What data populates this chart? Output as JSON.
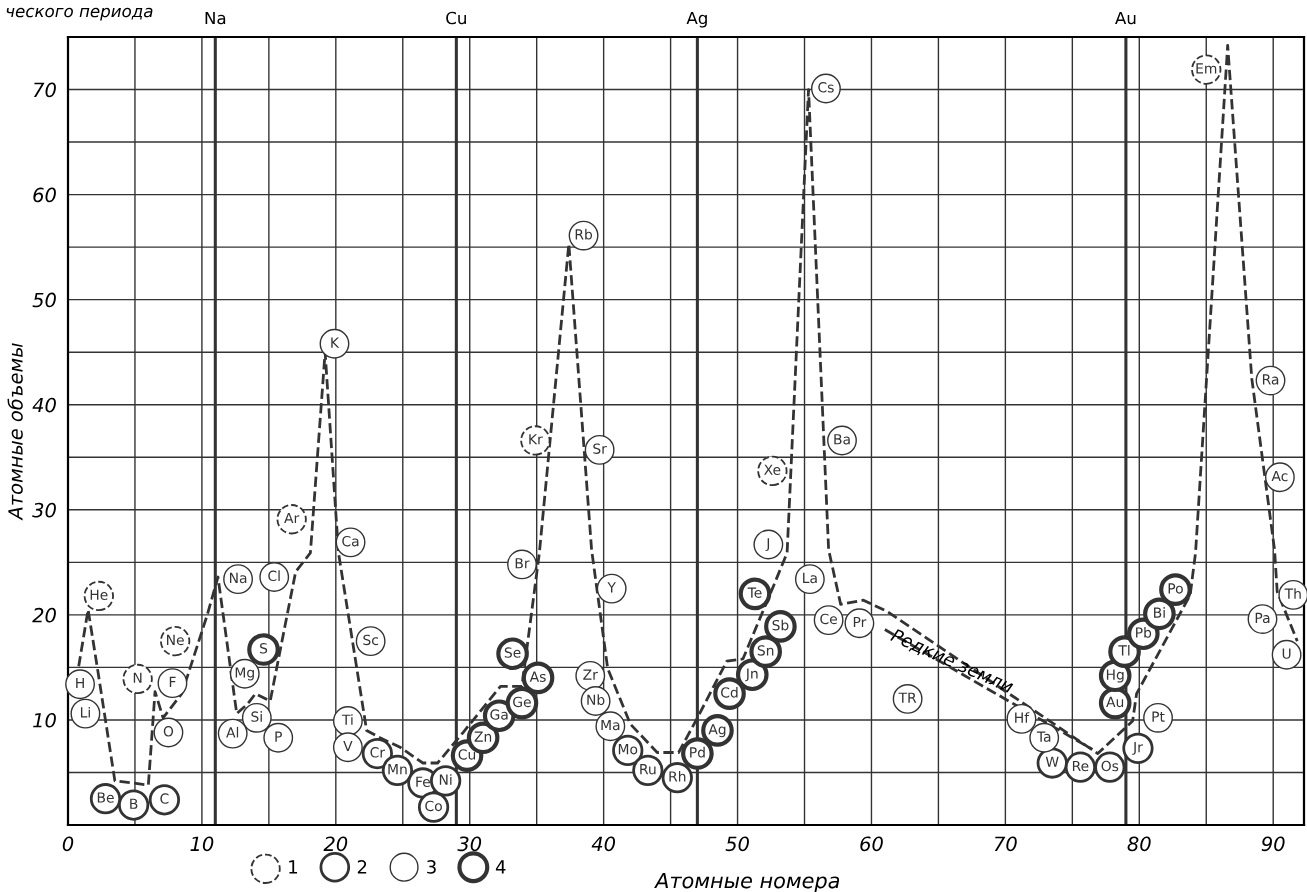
{
  "chart_data": {
    "type": "scatter",
    "xlabel": "Атомные номера",
    "ylabel": "Атомные объемы",
    "xlim": [
      0,
      92.3
    ],
    "ylim": [
      0,
      75
    ],
    "xticks": [
      0,
      {
        "value": 5,
        "label": null
      },
      10,
      {
        "value": 15,
        "label": null
      },
      20,
      {
        "value": 25,
        "label": null
      },
      30,
      {
        "value": 35,
        "label": null
      },
      40,
      {
        "value": 45,
        "label": null
      },
      50,
      {
        "value": 55,
        "label": null
      },
      60,
      {
        "value": 65,
        "label": null
      },
      70,
      {
        "value": 75,
        "label": null
      },
      80,
      {
        "value": 85,
        "label": null
      },
      90
    ],
    "yticks": [
      {
        "value": 5,
        "label": null
      },
      10,
      {
        "value": 15,
        "label": null
      },
      20,
      {
        "value": 25,
        "label": null
      },
      30,
      {
        "value": 35,
        "label": null
      },
      40,
      {
        "value": 45,
        "label": null
      },
      50,
      {
        "value": 55,
        "label": null
      },
      60,
      {
        "value": 65,
        "label": null
      },
      70
    ],
    "grid": true,
    "legend": "bottom",
    "marker": "circle",
    "ref_lines": [
      {
        "axis": "x",
        "value": 11,
        "label": "Na"
      },
      {
        "axis": "x",
        "value": 29,
        "label": "Cu"
      },
      {
        "axis": "x",
        "value": 47,
        "label": "Ag"
      },
      {
        "axis": "x",
        "value": 79,
        "label": "Au"
      }
    ],
    "annotations": [
      "ческого периода",
      {
        "text": "Редкие земли",
        "x": 66,
        "y": 15.5
      }
    ],
    "series": [
      {
        "type": "line",
        "marker": "none",
        "color": "#333333",
        "line_style": "dashed",
        "x": [
          0.8,
          1.5,
          2.2,
          3.5,
          4.8,
          6.0,
          6.5,
          7.1,
          8.5,
          10.4,
          11.2,
          12.6,
          13.4,
          14.0,
          15.1,
          17.0,
          18.1,
          19.2,
          20.2,
          22.3,
          23.3,
          24.8,
          26.5,
          27.6,
          29.5,
          32.3,
          33.9,
          35.2,
          37.4,
          39.1,
          40.3,
          42.0,
          44.0,
          45.6,
          47.0,
          49.2,
          50.4,
          52.7,
          53.7,
          55.3,
          56.8,
          57.7,
          59.4,
          61.2,
          76.9,
          79.5,
          79.8,
          83.8,
          84.2,
          86.6,
          88.4,
          90.1,
          90.3,
          91.8
        ],
        "values": [
          15.1,
          20.5,
          14.9,
          4.2,
          4.0,
          3.8,
          12.7,
          10.2,
          12.5,
          20.0,
          23.6,
          10.6,
          11.5,
          12.5,
          11.8,
          24.1,
          25.9,
          45.0,
          25.9,
          9.0,
          8.3,
          7.4,
          5.9,
          5.9,
          8.8,
          13.2,
          13.2,
          25.9,
          55.3,
          26.2,
          14.9,
          9.6,
          6.9,
          6.9,
          10.2,
          15.6,
          15.8,
          22.8,
          25.9,
          70.0,
          26.2,
          21.0,
          21.4,
          20.3,
          6.8,
          9.9,
          12.5,
          21.9,
          25.9,
          74.2,
          42.5,
          26.2,
          22.2,
          17.5
        ]
      },
      {
        "type": "line",
        "marker": "none",
        "color": "#333333",
        "line_style": "dashed",
        "x": [
          61.0,
          76.5
        ],
        "values": [
          18.6,
          7.2
        ]
      },
      {
        "name": "1",
        "color": "#333333",
        "line_style": "dashed",
        "x": [
          2.3,
          5.2,
          8.0,
          16.7,
          34.9,
          52.6,
          85.0
        ],
        "values": [
          21.8,
          13.9,
          17.5,
          29.1,
          36.6,
          33.7,
          71.9
        ],
        "value_labels": [
          "He",
          "N",
          "Ne",
          "Ar",
          "Kr",
          "Xe",
          "Em"
        ]
      },
      {
        "name": "2",
        "color": "#333333",
        "line_style": "solid",
        "x": [
          2.8,
          4.9,
          7.2,
          23.1,
          24.6,
          26.5,
          27.3,
          28.2,
          41.8,
          43.3,
          45.5,
          73.5,
          75.6,
          77.8,
          79.9
        ],
        "values": [
          2.5,
          1.9,
          2.4,
          6.8,
          5.2,
          4.0,
          1.7,
          4.2,
          7.1,
          5.2,
          4.5,
          5.9,
          5.5,
          5.5,
          7.3
        ],
        "value_labels": [
          "Be",
          "B",
          "C",
          "Cr",
          "Mn",
          "Fe",
          "Co",
          "Ni",
          "Mo",
          "Ru",
          "Rh",
          "W",
          "Re",
          "Os",
          "Jr"
        ]
      },
      {
        "name": "3",
        "color": "#333333",
        "line_style": "solid",
        "x": [
          0.9,
          1.3,
          7.8,
          7.5,
          12.7,
          15.4,
          13.2,
          14.1,
          12.3,
          15.7,
          19.9,
          21.1,
          22.6,
          20.9,
          20.9,
          33.9,
          38.5,
          39.7,
          40.6,
          39.0,
          39.4,
          40.5,
          52.3,
          56.6,
          57.8,
          55.4,
          56.8,
          59.1,
          62.7,
          71.2,
          72.9,
          81.4,
          89.8,
          90.5,
          91.5,
          89.2,
          91.0
        ],
        "values": [
          13.4,
          10.6,
          13.5,
          8.8,
          23.4,
          23.6,
          14.4,
          10.2,
          8.7,
          8.3,
          45.8,
          26.9,
          17.5,
          9.9,
          7.4,
          24.8,
          56.1,
          35.7,
          22.5,
          14.2,
          11.8,
          9.4,
          26.7,
          70.1,
          36.6,
          23.4,
          19.5,
          19.2,
          12.0,
          10.1,
          8.3,
          10.2,
          42.3,
          33.1,
          21.9,
          19.6,
          16.2
        ],
        "value_labels": [
          "H",
          "Li",
          "F",
          "O",
          "Na",
          "Cl",
          "Mg",
          "Si",
          "Al",
          "P",
          "K",
          "Ca",
          "Sc",
          "Ti",
          "V",
          "Br",
          "Rb",
          "Sr",
          "Y",
          "Zr",
          "Nb",
          "Ma",
          "J",
          "Cs",
          "Ba",
          "La",
          "Ce",
          "Pr",
          "TR",
          "Hf",
          "Ta",
          "Pt",
          "Ra",
          "Ac",
          "Th",
          "Pa",
          "U"
        ]
      },
      {
        "name": "4",
        "color": "#333333",
        "line_style": "solid",
        "x": [
          14.6,
          29.8,
          31.0,
          32.2,
          33.9,
          35.1,
          33.2,
          47.0,
          48.5,
          49.4,
          51.1,
          52.1,
          53.2,
          51.3,
          78.2,
          78.2,
          78.9,
          80.3,
          81.5,
          82.7
        ],
        "values": [
          16.7,
          6.6,
          8.3,
          10.4,
          11.6,
          14.0,
          16.3,
          6.8,
          9.0,
          12.5,
          14.3,
          16.5,
          18.9,
          22.0,
          11.6,
          14.2,
          16.5,
          18.2,
          20.1,
          22.4
        ],
        "value_labels": [
          "S",
          "Cu",
          "Zn",
          "Ga",
          "Ge",
          "As",
          "Se",
          "Pd",
          "Ag",
          "Cd",
          "Jn",
          "Sn",
          "Sb",
          "Te",
          "Au",
          "Hg",
          "Tl",
          "Pb",
          "Bi",
          "Po"
        ]
      }
    ]
  }
}
